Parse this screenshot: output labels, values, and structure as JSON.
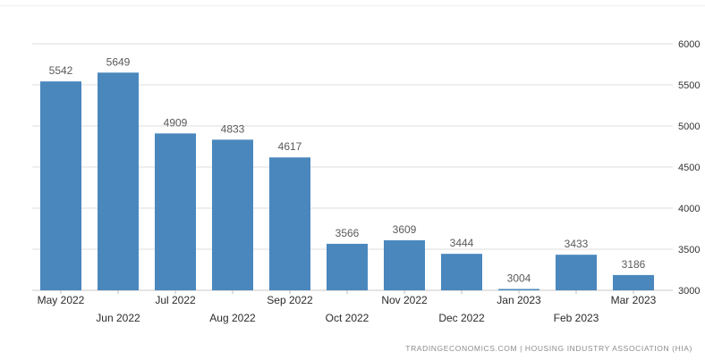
{
  "chart_data": {
    "type": "bar",
    "title": "",
    "xlabel": "",
    "ylabel": "",
    "categories": [
      "May 2022",
      "Jun 2022",
      "Jul 2022",
      "Aug 2022",
      "Sep 2022",
      "Oct 2022",
      "Nov 2022",
      "Dec 2022",
      "Jan 2023",
      "Feb 2023",
      "Mar 2023"
    ],
    "values": [
      5542,
      5649,
      4909,
      4833,
      4617,
      3566,
      3609,
      3444,
      3004,
      3433,
      3186
    ],
    "ylim": [
      3000,
      6000
    ],
    "yticks": [
      3000,
      3500,
      4000,
      4500,
      5000,
      5500,
      6000
    ],
    "y_axis_position": "right",
    "grid": true,
    "bar_color": "#4a87bd",
    "grid_color": "#dcdcdc",
    "label_color": "#5a5a5a",
    "data_labels": true
  },
  "source": "TRADINGECONOMICS.COM  |  HOUSING INDUSTRY ASSOCIATION (HIA)"
}
